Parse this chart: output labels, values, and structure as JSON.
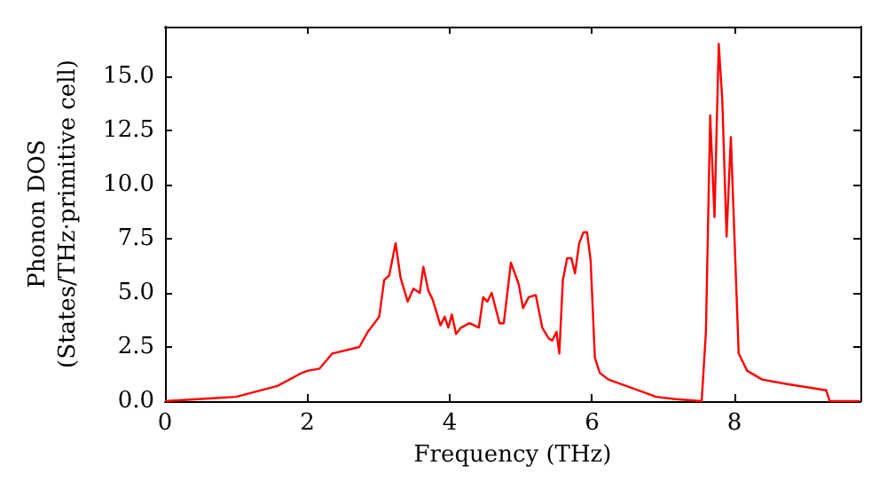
{
  "chart_data": {
    "type": "line",
    "xlabel": "Frequency (THz)",
    "ylabel": "Phonon DOS\n(States/THz·primitive cell)",
    "color": "#ff0000",
    "grid": false,
    "marker": "none",
    "line_style": "solid",
    "xlim": [
      0,
      9.77
    ],
    "xticks": [
      0,
      2,
      4,
      6,
      8
    ],
    "ylim": [
      0,
      17.3
    ],
    "yticks": [
      {
        "value": 0,
        "label": "0.0"
      },
      {
        "value": 2.5,
        "label": "2.5"
      },
      {
        "value": 5,
        "label": "5.0"
      },
      {
        "value": 7.5,
        "label": "7.5"
      },
      {
        "value": 10,
        "label": "10.0"
      },
      {
        "value": 12.5,
        "label": "12.5"
      },
      {
        "value": 15,
        "label": "15.0"
      }
    ],
    "x": [
      0,
      1.0,
      1.58,
      1.92,
      2.0,
      2.17,
      2.35,
      2.73,
      2.85,
      3.01,
      3.08,
      3.15,
      3.24,
      3.31,
      3.41,
      3.49,
      3.58,
      3.63,
      3.7,
      3.76,
      3.87,
      3.93,
      3.98,
      4.03,
      4.09,
      4.16,
      4.28,
      4.41,
      4.47,
      4.53,
      4.59,
      4.7,
      4.76,
      4.86,
      4.97,
      5.03,
      5.11,
      5.21,
      5.3,
      5.39,
      5.44,
      5.5,
      5.54,
      5.59,
      5.65,
      5.71,
      5.76,
      5.82,
      5.88,
      5.93,
      5.98,
      6.04,
      6.11,
      6.23,
      6.73,
      6.9,
      7.15,
      7.54,
      7.6,
      7.66,
      7.72,
      7.78,
      7.83,
      7.89,
      7.95,
      8.06,
      8.18,
      8.39,
      8.72,
      9.29,
      9.34,
      9.76
    ],
    "values": [
      0,
      0.2,
      0.7,
      1.3,
      1.4,
      1.5,
      2.2,
      2.5,
      3.2,
      3.9,
      5.6,
      5.8,
      7.3,
      5.7,
      4.6,
      5.2,
      5.0,
      6.2,
      5.1,
      4.7,
      3.5,
      3.9,
      3.4,
      4.0,
      3.1,
      3.4,
      3.6,
      3.4,
      4.8,
      4.6,
      5.0,
      3.6,
      3.6,
      6.4,
      5.4,
      4.3,
      4.8,
      4.9,
      3.4,
      2.9,
      2.8,
      3.2,
      2.2,
      5.6,
      6.6,
      6.6,
      5.9,
      7.3,
      7.8,
      7.8,
      6.5,
      2.0,
      1.3,
      1.0,
      0.4,
      0.2,
      0.1,
      0,
      3.2,
      13.2,
      8.5,
      16.5,
      13.9,
      7.6,
      12.2,
      2.2,
      1.4,
      1.0,
      0.8,
      0.5,
      0,
      0
    ]
  }
}
